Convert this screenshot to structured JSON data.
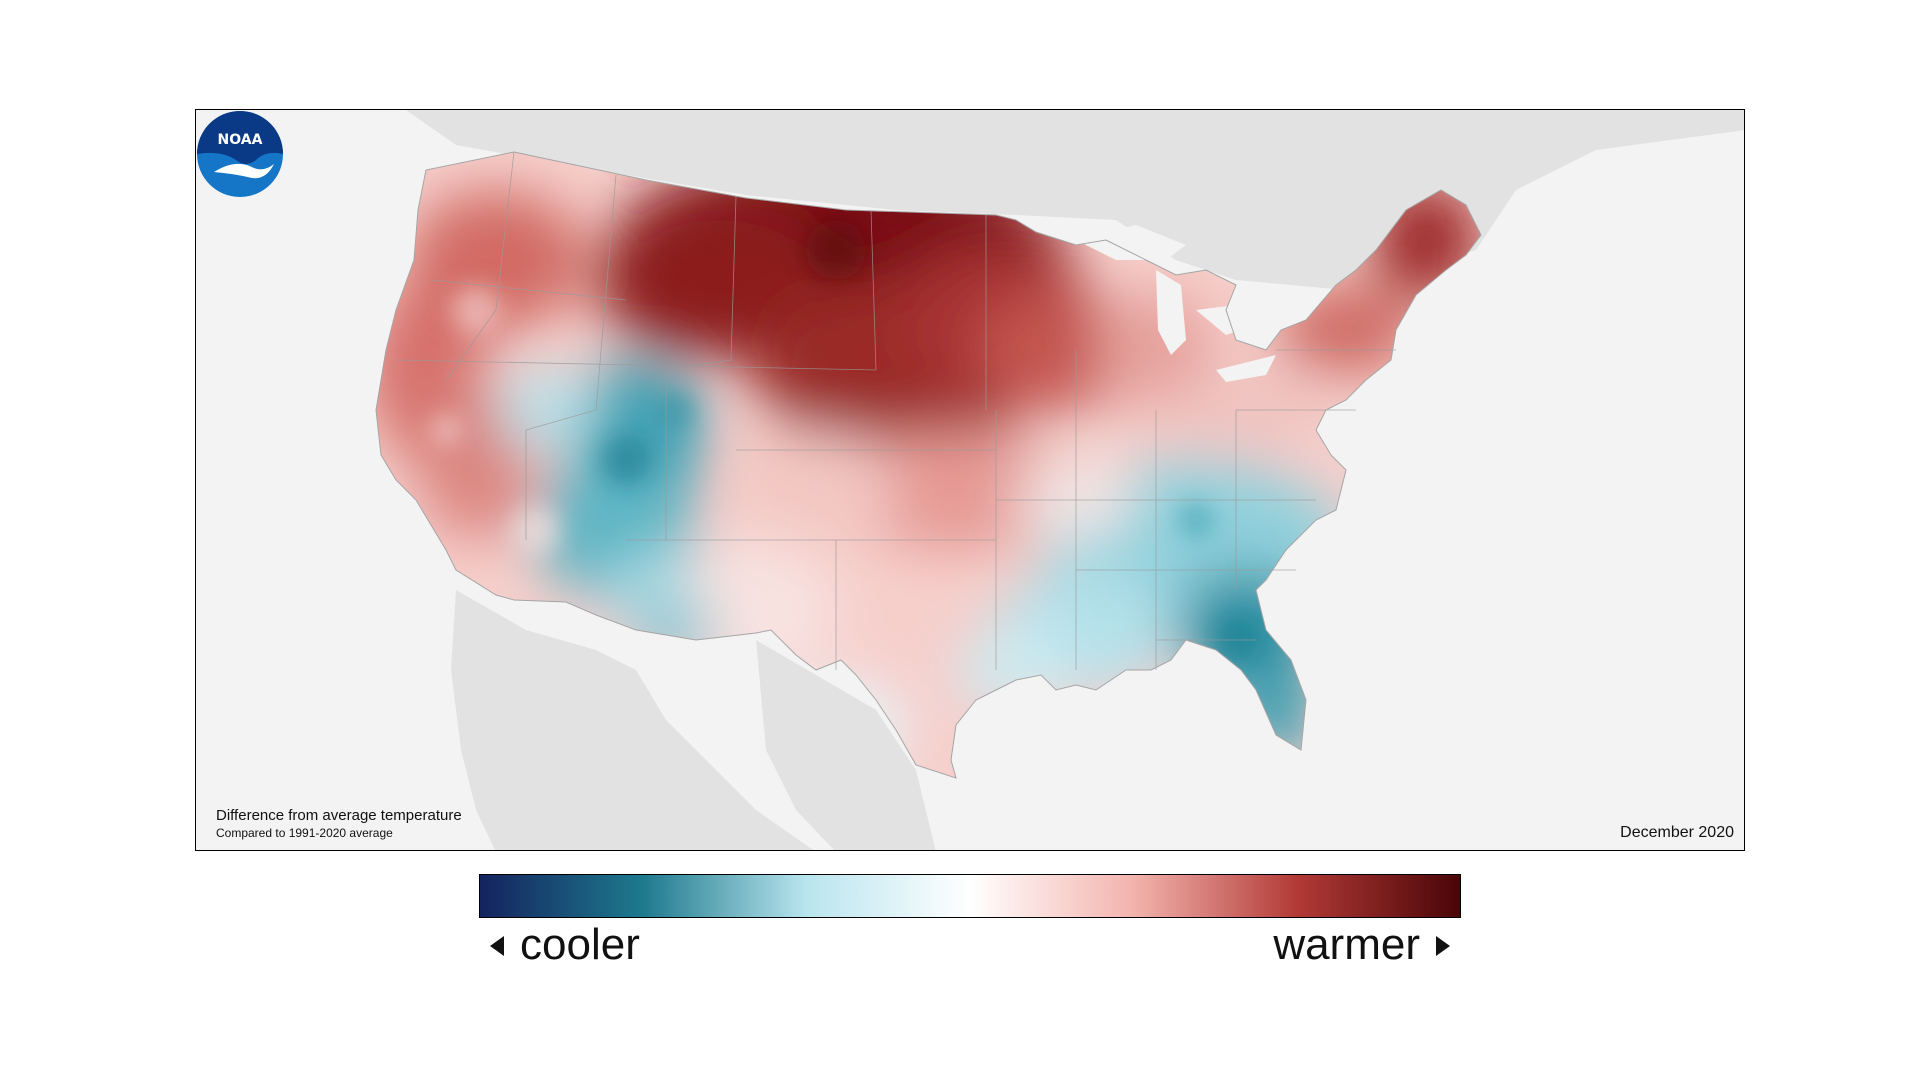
{
  "map": {
    "caption_title": "Difference from average temperature",
    "caption_subtitle": "Compared to 1991-2020 average",
    "date": "December 2020",
    "logo_text": "NOAA"
  },
  "legend": {
    "cooler_label": "cooler",
    "warmer_label": "warmer",
    "gradient_colors": [
      "#14235e",
      "#1e7a8e",
      "#b9e5ee",
      "#ffffff",
      "#f3b3ad",
      "#b23a36",
      "#4a0507"
    ]
  },
  "colors": {
    "background": "#f3f3f3",
    "land_outside": "#e2e2e2",
    "warm_strong": "#7a1113",
    "warm": "#c8524f",
    "warm_light": "#f2bcb8",
    "neutral": "#ffffff",
    "cool_light": "#bfe6ee",
    "cool": "#3c9fb1",
    "cool_strong": "#177f93",
    "noaa_blue": "#0a3a85",
    "noaa_light": "#1576c8"
  }
}
